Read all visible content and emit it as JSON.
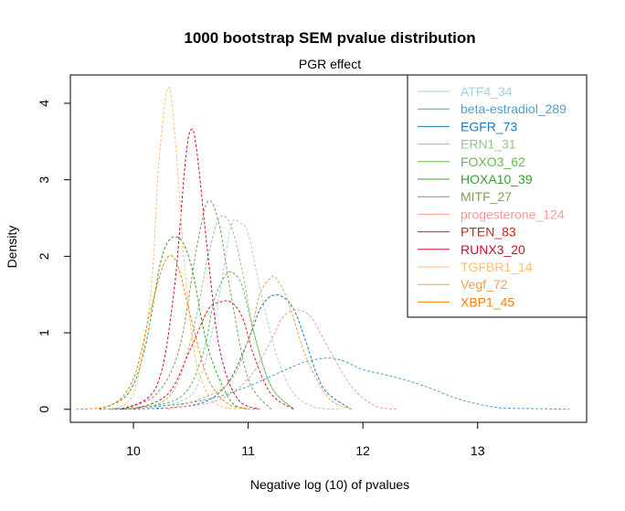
{
  "chart_data": {
    "type": "line",
    "title": "1000 bootstrap SEM pvalue distribution",
    "subtitle": "PGR effect",
    "xlabel": "Negative log (10) of pvalues",
    "ylabel": "Density",
    "xlim": [
      9.45,
      13.95
    ],
    "ylim": [
      -0.17,
      4.37
    ],
    "xticks": [
      10,
      11,
      12,
      13
    ],
    "yticks": [
      0,
      1,
      2,
      3,
      4
    ],
    "legend_position": "top-right",
    "grid": false,
    "line_style": "dashed",
    "series": [
      {
        "name": "ATF4_34",
        "color": "#a6cee3",
        "x": [
          9.7,
          10.4,
          10.6,
          10.75,
          10.85,
          10.93,
          11.0,
          11.1,
          11.25,
          11.4,
          11.6,
          11.8
        ],
        "y": [
          0,
          0.1,
          0.5,
          1.5,
          2.4,
          2.43,
          2.3,
          1.6,
          0.7,
          0.2,
          0.02,
          0
        ]
      },
      {
        "name": "beta-estradiol_289",
        "color": "#4f9fcc",
        "x": [
          9.7,
          10.3,
          10.7,
          11.0,
          11.3,
          11.5,
          11.7,
          11.85,
          12.0,
          12.2,
          12.4,
          12.6,
          12.8,
          13.0,
          13.2,
          13.45,
          13.8
        ],
        "y": [
          0,
          0.05,
          0.15,
          0.3,
          0.5,
          0.62,
          0.67,
          0.62,
          0.52,
          0.45,
          0.37,
          0.27,
          0.15,
          0.07,
          0.02,
          0.01,
          0
        ]
      },
      {
        "name": "EGFR_73",
        "color": "#1f78b4",
        "x": [
          9.8,
          10.5,
          10.8,
          11.0,
          11.1,
          11.2,
          11.3,
          11.4,
          11.5,
          11.6,
          11.7,
          11.9
        ],
        "y": [
          0,
          0.05,
          0.3,
          0.9,
          1.3,
          1.48,
          1.47,
          1.3,
          0.9,
          0.45,
          0.2,
          0
        ]
      },
      {
        "name": "ERN1_31",
        "color": "#95c48c",
        "x": [
          9.9,
          10.3,
          10.5,
          10.65,
          10.75,
          10.85,
          10.95,
          11.05,
          11.2,
          11.4
        ],
        "y": [
          0,
          0.15,
          0.9,
          2.0,
          2.5,
          2.4,
          1.8,
          1.0,
          0.3,
          0
        ]
      },
      {
        "name": "FOXO3_62",
        "color": "#6ab74f",
        "x": [
          9.9,
          10.4,
          10.6,
          10.7,
          10.8,
          10.87,
          10.95,
          11.05,
          11.2,
          11.4
        ],
        "y": [
          0,
          0.15,
          0.7,
          1.4,
          1.75,
          1.78,
          1.6,
          1.0,
          0.3,
          0
        ]
      },
      {
        "name": "HOXA10_39",
        "color": "#33a02c",
        "x": [
          9.7,
          9.95,
          10.1,
          10.25,
          10.38,
          10.5,
          10.65,
          10.85,
          11.0
        ],
        "y": [
          0,
          0.2,
          0.8,
          2.0,
          2.25,
          1.9,
          0.8,
          0.1,
          0
        ]
      },
      {
        "name": "MITF_27",
        "color": "#7aa05a",
        "x": [
          9.9,
          10.2,
          10.4,
          10.55,
          10.65,
          10.75,
          10.85,
          11.0,
          11.2
        ],
        "y": [
          0,
          0.2,
          0.8,
          2.1,
          2.72,
          2.4,
          1.5,
          0.4,
          0
        ]
      },
      {
        "name": "progesterone_124",
        "color": "#fb9a99",
        "x": [
          10.2,
          10.7,
          11.0,
          11.2,
          11.3,
          11.42,
          11.55,
          11.7,
          11.9,
          12.1,
          12.3
        ],
        "y": [
          0,
          0.1,
          0.4,
          0.9,
          1.2,
          1.3,
          1.2,
          0.8,
          0.3,
          0.05,
          0
        ]
      },
      {
        "name": "PTEN_83",
        "color": "#e31a1c",
        "x": [
          10.0,
          10.3,
          10.5,
          10.65,
          10.75,
          10.85,
          10.95,
          11.05,
          11.2,
          11.4
        ],
        "y": [
          0,
          0.2,
          0.8,
          1.3,
          1.4,
          1.4,
          1.2,
          0.7,
          0.2,
          0
        ]
      },
      {
        "name": "RUNX3_20",
        "color": "#c8102e",
        "x": [
          9.9,
          10.2,
          10.35,
          10.45,
          10.5,
          10.55,
          10.65,
          10.75,
          10.9,
          11.1
        ],
        "y": [
          0,
          0.3,
          1.5,
          3.2,
          3.65,
          3.4,
          2.0,
          0.8,
          0.15,
          0
        ]
      },
      {
        "name": "TGFBR1_14",
        "color": "#fdbf6f",
        "x": [
          9.8,
          10.0,
          10.15,
          10.22,
          10.3,
          10.36,
          10.45,
          10.55,
          10.7,
          10.9
        ],
        "y": [
          0,
          0.2,
          1.5,
          3.2,
          4.2,
          3.6,
          1.8,
          0.6,
          0.1,
          0
        ]
      },
      {
        "name": "Vegf_72",
        "color": "#f0a050",
        "x": [
          10.3,
          10.8,
          11.0,
          11.1,
          11.2,
          11.25,
          11.35,
          11.5,
          11.7,
          11.9
        ],
        "y": [
          0,
          0.3,
          0.9,
          1.5,
          1.72,
          1.7,
          1.4,
          0.7,
          0.15,
          0
        ]
      },
      {
        "name": "XBP1_45",
        "color": "#ff7f00",
        "x": [
          9.5,
          9.8,
          10.0,
          10.15,
          10.28,
          10.38,
          10.5,
          10.65,
          10.85,
          11.1
        ],
        "y": [
          0,
          0.05,
          0.4,
          1.3,
          1.95,
          1.9,
          1.2,
          0.4,
          0.05,
          0
        ]
      }
    ]
  }
}
